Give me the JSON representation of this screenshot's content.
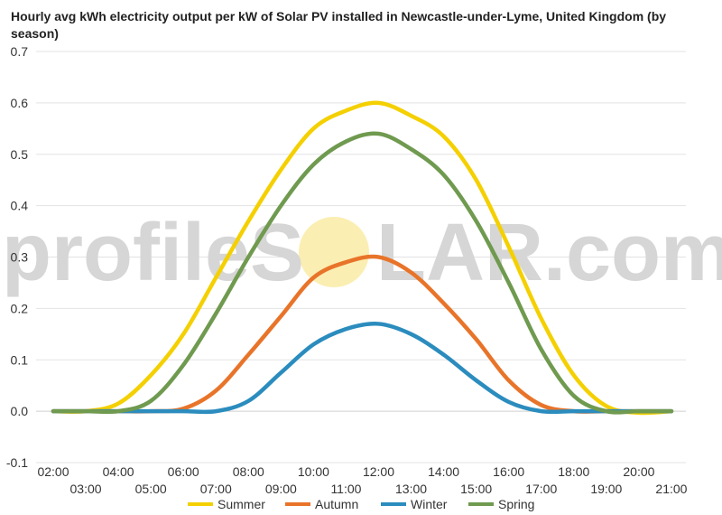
{
  "title": "Hourly avg kWh electricity output per kW of Solar PV installed in Newcastle-under-Lyme, United Kingdom (by season)",
  "watermark": {
    "text_left": "profileS",
    "text_right": "LAR.com",
    "color": "#d6d6d6",
    "sun_color": "#fbeeb2"
  },
  "chart_data": {
    "type": "line",
    "title": "Hourly avg kWh electricity output per kW of Solar PV installed in Newcastle-under-Lyme, United Kingdom (by season)",
    "xlabel": "",
    "ylabel": "",
    "x": [
      "02:00",
      "03:00",
      "04:00",
      "05:00",
      "06:00",
      "07:00",
      "08:00",
      "09:00",
      "10:00",
      "11:00",
      "12:00",
      "13:00",
      "14:00",
      "15:00",
      "16:00",
      "17:00",
      "18:00",
      "19:00",
      "20:00",
      "21:00"
    ],
    "x_tick_labels": [
      "02:00",
      "03:00",
      "04:00",
      "05:00",
      "06:00",
      "07:00",
      "08:00",
      "09:00",
      "10:00",
      "11:00",
      "12:00",
      "13:00",
      "14:00",
      "15:00",
      "16:00",
      "17:00",
      "18:00",
      "19:00",
      "20:00",
      "21:00"
    ],
    "y_ticks": [
      -0.1,
      0.0,
      0.1,
      0.2,
      0.3,
      0.4,
      0.5,
      0.6,
      0.7
    ],
    "y_tick_labels": [
      "-0.1",
      "0.0",
      "0.1",
      "0.2",
      "0.3",
      "0.4",
      "0.5",
      "0.6",
      "0.7"
    ],
    "ylim": [
      -0.1,
      0.7
    ],
    "grid": true,
    "legend_position": "bottom",
    "series": [
      {
        "name": "Summer",
        "color": "#f4d000",
        "values": [
          0.0,
          0.0,
          0.015,
          0.07,
          0.15,
          0.26,
          0.37,
          0.47,
          0.55,
          0.585,
          0.6,
          0.575,
          0.535,
          0.45,
          0.32,
          0.18,
          0.07,
          0.01,
          -0.003,
          0.0
        ]
      },
      {
        "name": "Autumn",
        "color": "#e8742a",
        "values": [
          0.0,
          0.0,
          0.0,
          0.0,
          0.005,
          0.04,
          0.11,
          0.185,
          0.26,
          0.29,
          0.3,
          0.27,
          0.21,
          0.14,
          0.06,
          0.012,
          0.0,
          0.0,
          0.0,
          0.0
        ]
      },
      {
        "name": "Winter",
        "color": "#2b8cbe",
        "values": [
          0.0,
          0.0,
          0.0,
          0.0,
          0.0,
          0.0,
          0.02,
          0.075,
          0.13,
          0.16,
          0.17,
          0.15,
          0.11,
          0.06,
          0.018,
          0.0,
          0.0,
          0.0,
          0.0,
          0.0
        ]
      },
      {
        "name": "Spring",
        "color": "#6f9a4f",
        "values": [
          0.0,
          0.0,
          0.0,
          0.02,
          0.09,
          0.19,
          0.3,
          0.4,
          0.48,
          0.525,
          0.54,
          0.51,
          0.46,
          0.37,
          0.25,
          0.12,
          0.03,
          0.0,
          0.0,
          0.0
        ]
      }
    ]
  }
}
